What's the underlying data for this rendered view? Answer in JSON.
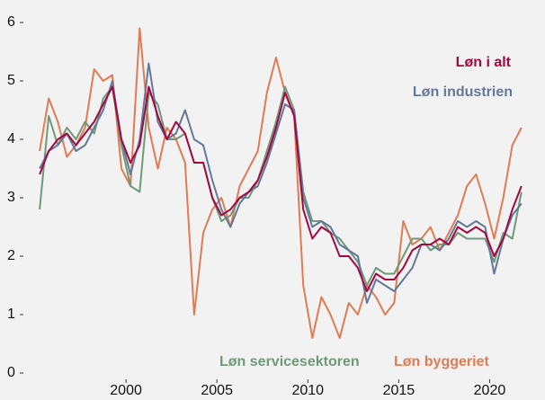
{
  "chart_data": {
    "type": "line",
    "x": [
      1995.25,
      1995.75,
      1996.25,
      1996.75,
      1997.25,
      1997.75,
      1998.25,
      1998.75,
      1999.25,
      1999.75,
      2000.25,
      2000.75,
      2001.25,
      2001.75,
      2002.25,
      2002.75,
      2003.25,
      2003.75,
      2004.25,
      2004.75,
      2005.25,
      2005.75,
      2006.25,
      2006.75,
      2007.25,
      2007.75,
      2008.25,
      2008.75,
      2009.25,
      2009.75,
      2010.25,
      2010.75,
      2011.25,
      2011.75,
      2012.25,
      2012.75,
      2013.25,
      2013.75,
      2014.25,
      2014.75,
      2015.25,
      2015.75,
      2016.25,
      2016.75,
      2017.25,
      2017.75,
      2018.25,
      2018.75,
      2019.25,
      2019.75,
      2020.25,
      2020.75,
      2021.25,
      2021.75
    ],
    "series": [
      {
        "name": "Løn byggeriet",
        "color": "#e07b54",
        "values": [
          3.8,
          4.7,
          4.3,
          3.7,
          3.9,
          4.2,
          5.2,
          5.0,
          5.1,
          3.5,
          3.2,
          5.9,
          4.2,
          3.5,
          4.2,
          4.0,
          3.6,
          1.0,
          2.4,
          2.8,
          3.0,
          2.5,
          3.2,
          3.5,
          3.8,
          4.8,
          5.4,
          4.8,
          4.4,
          1.5,
          0.6,
          1.3,
          1.0,
          0.6,
          1.2,
          1.0,
          1.5,
          1.3,
          1.0,
          1.2,
          2.6,
          2.2,
          2.3,
          2.5,
          2.1,
          2.4,
          2.7,
          3.2,
          3.4,
          2.9,
          2.3,
          3.0,
          3.9,
          4.2
        ]
      },
      {
        "name": "Løn servicesektoren",
        "color": "#6f9a7a",
        "values": [
          2.8,
          4.4,
          3.9,
          4.2,
          4.0,
          4.3,
          4.1,
          4.7,
          4.9,
          3.9,
          3.2,
          3.1,
          4.8,
          4.6,
          4.0,
          4.0,
          4.1,
          3.6,
          3.6,
          3.0,
          2.6,
          2.7,
          3.0,
          3.0,
          3.3,
          3.8,
          4.3,
          4.9,
          4.5,
          3.1,
          2.6,
          2.6,
          2.4,
          2.3,
          2.1,
          1.9,
          1.5,
          1.8,
          1.7,
          1.7,
          2.0,
          2.3,
          2.3,
          2.1,
          2.2,
          2.2,
          2.4,
          2.3,
          2.3,
          2.3,
          1.9,
          2.4,
          2.3,
          3.1
        ]
      },
      {
        "name": "Løn industrien",
        "color": "#62799a",
        "values": [
          3.5,
          3.8,
          3.9,
          4.1,
          3.8,
          3.9,
          4.2,
          4.5,
          5.0,
          4.0,
          3.4,
          4.0,
          5.3,
          4.3,
          4.0,
          4.1,
          4.5,
          4.0,
          3.9,
          3.3,
          2.8,
          2.5,
          2.9,
          3.1,
          3.2,
          3.6,
          4.1,
          4.6,
          4.5,
          3.0,
          2.5,
          2.6,
          2.5,
          2.2,
          2.1,
          2.0,
          1.2,
          1.6,
          1.5,
          1.4,
          1.6,
          1.8,
          2.2,
          2.2,
          2.1,
          2.3,
          2.6,
          2.5,
          2.6,
          2.5,
          1.7,
          2.3,
          2.7,
          2.9
        ]
      },
      {
        "name": "Løn i alt",
        "color": "#a5073f",
        "values": [
          3.4,
          3.8,
          4.0,
          4.1,
          3.9,
          4.1,
          4.3,
          4.6,
          4.9,
          4.0,
          3.6,
          3.9,
          4.9,
          4.4,
          4.0,
          4.3,
          4.1,
          3.6,
          3.6,
          3.0,
          2.7,
          2.8,
          3.0,
          3.1,
          3.3,
          3.7,
          4.2,
          4.8,
          4.4,
          2.8,
          2.3,
          2.5,
          2.4,
          2.0,
          2.0,
          1.8,
          1.4,
          1.7,
          1.6,
          1.6,
          1.8,
          2.1,
          2.2,
          2.2,
          2.3,
          2.2,
          2.5,
          2.4,
          2.5,
          2.4,
          2.0,
          2.3,
          2.8,
          3.2
        ]
      }
    ],
    "xlim": [
      1995,
      2022.5
    ],
    "xticks": [
      2000,
      2005,
      2010,
      2015,
      2020
    ],
    "ylim": [
      0,
      6.2
    ],
    "yticks": [
      0,
      1,
      2,
      3,
      4,
      5,
      6
    ]
  }
}
